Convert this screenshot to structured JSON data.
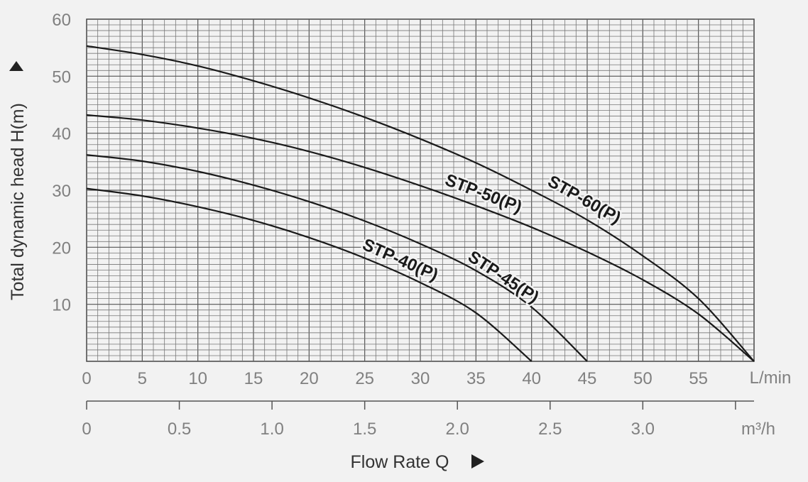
{
  "chart_data": {
    "type": "line",
    "xlabel": "Flow Rate Q",
    "ylabel": "Total dynamic head H(m)",
    "x_unit": "L/min",
    "x2_unit": "m³/h",
    "xlim": [
      0,
      60
    ],
    "ylim": [
      0,
      60
    ],
    "x2lim": [
      0,
      3.6
    ],
    "grid": true,
    "x_ticks": [
      "0",
      "5",
      "10",
      "15",
      "20",
      "25",
      "30",
      "35",
      "40",
      "45",
      "50",
      "55"
    ],
    "x_tick_values": [
      0,
      5,
      10,
      15,
      20,
      25,
      30,
      35,
      40,
      45,
      50,
      55
    ],
    "y_ticks": [
      "10",
      "20",
      "30",
      "40",
      "50",
      "60"
    ],
    "y_tick_values": [
      10,
      20,
      30,
      40,
      50,
      60
    ],
    "x2_ticks": [
      "0",
      "0.5",
      "1.0",
      "1.5",
      "2.0",
      "2.5",
      "3.0"
    ],
    "x2_tick_values": [
      0,
      0.5,
      1.0,
      1.5,
      2.0,
      2.5,
      3.0
    ],
    "series": [
      {
        "name": "STP-60(P)",
        "x": [
          0,
          5,
          10,
          15,
          20,
          25,
          30,
          35,
          40,
          45,
          50,
          55,
          60
        ],
        "y": [
          55.3,
          53.8,
          51.8,
          49.2,
          46.2,
          42.8,
          39,
          34.8,
          30,
          24.8,
          18.5,
          11,
          0
        ]
      },
      {
        "name": "STP-50(P)",
        "x": [
          0,
          5,
          10,
          15,
          20,
          25,
          30,
          35,
          40,
          45,
          50,
          55,
          60
        ],
        "y": [
          43.2,
          42.3,
          40.9,
          39.1,
          36.8,
          34,
          30.8,
          27.3,
          23.5,
          19.2,
          14.3,
          8.3,
          0
        ]
      },
      {
        "name": "STP-45(P)",
        "x": [
          0,
          5,
          10,
          15,
          20,
          25,
          30,
          35,
          40,
          45
        ],
        "y": [
          36.2,
          35.1,
          33.3,
          30.9,
          28,
          24.6,
          20.6,
          15.9,
          9.5,
          0
        ]
      },
      {
        "name": "STP-40(P)",
        "x": [
          0,
          5,
          10,
          15,
          20,
          25,
          30,
          35,
          40
        ],
        "y": [
          30.3,
          29,
          27.1,
          24.7,
          21.7,
          18.1,
          13.8,
          8.5,
          0
        ]
      }
    ]
  }
}
